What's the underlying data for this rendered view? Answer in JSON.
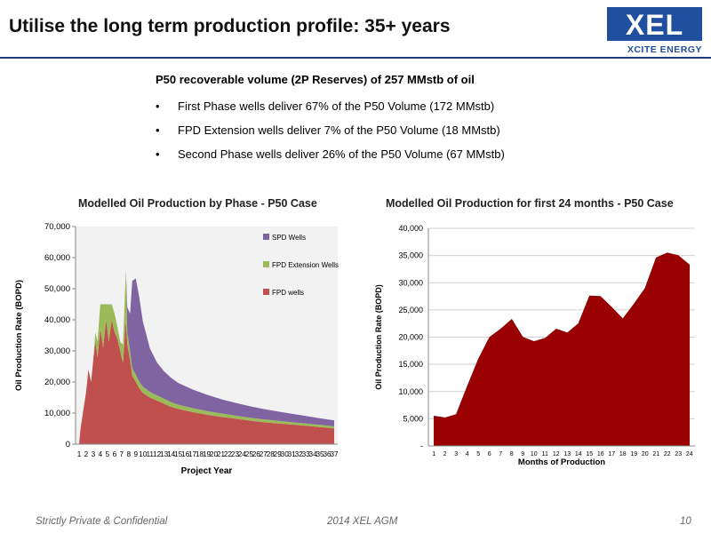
{
  "slide": {
    "title": "Utilise the long term production profile:  35+ years",
    "logo": {
      "name": "XEL",
      "subtitle": "XCITE ENERGY"
    },
    "intro": "P50 recoverable volume (2P Reserves) of 257 MMstb of oil",
    "bullets": [
      "First Phase wells deliver 67% of the P50 Volume (172 MMstb)",
      "FPD Extension wells deliver 7% of the P50 Volume (18 MMstb)",
      "Second Phase wells deliver 26% of the P50 Volume (67 MMstb)"
    ],
    "bullet_glyph": "•",
    "footer": {
      "left": "Strictly Private & Confidential",
      "center": "2014 XEL AGM",
      "page": "10"
    }
  },
  "colors": {
    "brand": "#1f4f9e",
    "fpd": "#c0504d",
    "fpd_ext": "#9bbb59",
    "spd": "#8064a2",
    "area24": "#9a0000"
  },
  "chart_data": [
    {
      "type": "area",
      "stacked": true,
      "title": "Modelled Oil Production by Phase - P50 Case",
      "xlabel": "Project Year",
      "ylabel": "Oil Production Rate (BOPD)",
      "ylim": [
        0,
        70000
      ],
      "yticks": [
        0,
        10000,
        20000,
        30000,
        40000,
        50000,
        60000,
        70000
      ],
      "ytick_labels": [
        "0",
        "10,000",
        "20,000",
        "30,000",
        "40,000",
        "50,000",
        "60,000",
        "70,000"
      ],
      "categories": [
        "1",
        "2",
        "3",
        "4",
        "5",
        "6",
        "7",
        "8",
        "9",
        "10",
        "11",
        "12",
        "13",
        "14",
        "15",
        "16",
        "17",
        "18",
        "19",
        "20",
        "21",
        "22",
        "23",
        "24",
        "25",
        "26",
        "27",
        "28",
        "29",
        "30",
        "31",
        "32",
        "33",
        "34",
        "35",
        "36",
        "37"
      ],
      "legend_position": "right",
      "series": [
        {
          "name": "FPD wells",
          "x": [
            1,
            1.2,
            2,
            2.3,
            2.7,
            3,
            3.3,
            3.6,
            4,
            4.4,
            4.8,
            5.2,
            5.6,
            6,
            6.4,
            6.8,
            7.2,
            7.6,
            7.8,
            8.2,
            8.5,
            9,
            9.5,
            10,
            11,
            12,
            13,
            14,
            15,
            17,
            19,
            21,
            23,
            25,
            27,
            29,
            31,
            33,
            35,
            37
          ],
          "y": [
            0,
            5000,
            17000,
            24000,
            20000,
            27000,
            33000,
            28000,
            37000,
            31000,
            40000,
            33000,
            40000,
            36000,
            34000,
            30000,
            26000,
            40000,
            32000,
            27000,
            22000,
            20000,
            18000,
            16500,
            15000,
            14000,
            13000,
            12000,
            11300,
            10300,
            9500,
            8800,
            8200,
            7600,
            7100,
            6700,
            6300,
            5900,
            5500,
            5100
          ]
        },
        {
          "name": "FPD Extension Wells",
          "x": [
            1,
            1.2,
            2,
            2.3,
            2.7,
            3,
            3.3,
            3.6,
            4,
            4.4,
            4.8,
            5.2,
            5.6,
            6,
            6.4,
            6.8,
            7.2,
            7.6,
            7.8,
            8.2,
            8.5,
            9,
            9.5,
            10,
            11,
            12,
            13,
            14,
            15,
            17,
            19,
            21,
            23,
            25,
            27,
            29,
            31,
            33,
            35,
            37
          ],
          "y": [
            0,
            0,
            0,
            0,
            0,
            0,
            3000,
            5000,
            8000,
            14000,
            5000,
            12000,
            5000,
            6000,
            4000,
            3000,
            6000,
            16000,
            4000,
            3000,
            2500,
            2300,
            2100,
            2000,
            1800,
            1700,
            1600,
            1500,
            1400,
            1300,
            1200,
            1100,
            1000,
            950,
            900,
            850,
            800,
            750,
            700,
            650
          ]
        },
        {
          "name": "SPD Wells",
          "x": [
            1,
            1.2,
            2,
            2.3,
            2.7,
            3,
            3.3,
            3.6,
            4,
            4.4,
            4.8,
            5.2,
            5.6,
            6,
            6.4,
            6.8,
            7.2,
            7.6,
            7.8,
            8.2,
            8.5,
            9,
            9.5,
            10,
            11,
            12,
            13,
            14,
            15,
            17,
            19,
            21,
            23,
            25,
            27,
            29,
            31,
            33,
            35,
            37
          ],
          "y": [
            0,
            0,
            0,
            0,
            0,
            0,
            0,
            0,
            0,
            0,
            0,
            0,
            0,
            0,
            0,
            0,
            0,
            0,
            8000,
            12000,
            28000,
            31000,
            27000,
            21000,
            14000,
            10500,
            8800,
            7800,
            7000,
            6000,
            5200,
            4600,
            4100,
            3700,
            3300,
            3000,
            2700,
            2400,
            2100,
            1900
          ]
        }
      ]
    },
    {
      "type": "area",
      "title": "Modelled Oil Production for first 24 months - P50 Case",
      "xlabel": "Months of Production",
      "ylabel": "Oil Production Rate (BOPD)",
      "ylim": [
        0,
        40000
      ],
      "yticks": [
        0,
        5000,
        10000,
        15000,
        20000,
        25000,
        30000,
        35000,
        40000
      ],
      "ytick_labels": [
        "-",
        "5,000",
        "10,000",
        "15,000",
        "20,000",
        "25,000",
        "30,000",
        "35,000",
        "40,000"
      ],
      "categories": [
        "1",
        "2",
        "3",
        "4",
        "5",
        "6",
        "7",
        "8",
        "9",
        "10",
        "11",
        "12",
        "13",
        "14",
        "15",
        "16",
        "17",
        "18",
        "19",
        "20",
        "21",
        "22",
        "23",
        "24"
      ],
      "values": [
        5500,
        5200,
        5800,
        11000,
        16000,
        20000,
        21500,
        23300,
        20000,
        19200,
        19800,
        21500,
        20800,
        22500,
        27600,
        27500,
        25500,
        23400,
        26100,
        29000,
        34600,
        35500,
        35000,
        33300
      ]
    }
  ]
}
